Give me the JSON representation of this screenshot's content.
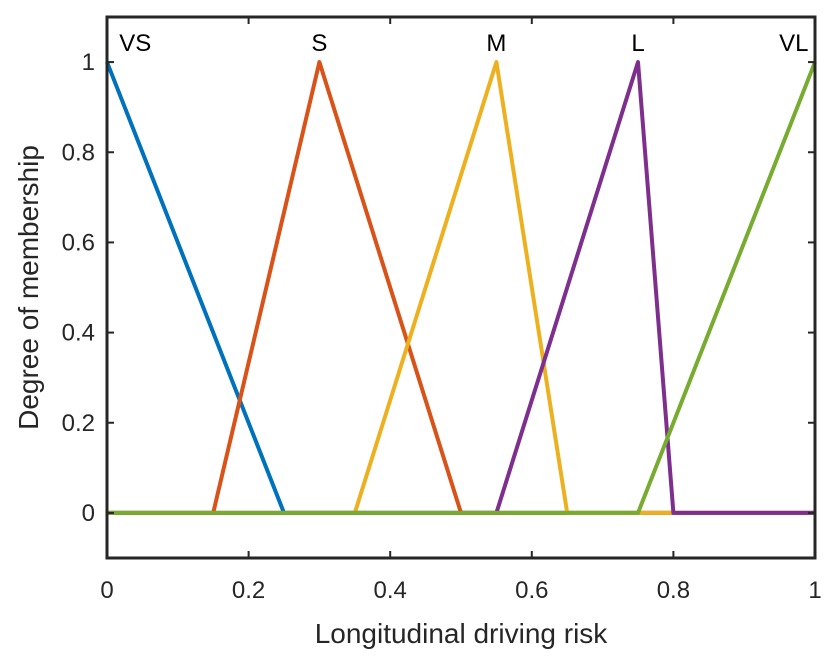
{
  "chart_data": {
    "type": "line",
    "title": "",
    "xlabel": "Longitudinal driving risk",
    "ylabel": "Degree of membership",
    "xlim": [
      0,
      1
    ],
    "ylim": [
      -0.1,
      1.1
    ],
    "xticks": [
      0,
      0.2,
      0.4,
      0.6,
      0.8,
      1
    ],
    "xtick_labels": [
      "0",
      "0.2",
      "0.4",
      "0.6",
      "0.8",
      "1"
    ],
    "yticks": [
      0,
      0.2,
      0.4,
      0.6,
      0.8,
      1
    ],
    "ytick_labels": [
      "0",
      "0.2",
      "0.4",
      "0.6",
      "0.8",
      "1"
    ],
    "grid": false,
    "series": [
      {
        "name": "VS",
        "color": "#0072BD",
        "x": [
          0,
          0.25,
          1
        ],
        "y": [
          1,
          0,
          0
        ],
        "label_x": 0.04
      },
      {
        "name": "S",
        "color": "#D95319",
        "x": [
          0,
          0.15,
          0.3,
          0.5,
          1
        ],
        "y": [
          0,
          0,
          1,
          0,
          0
        ],
        "label_x": 0.3
      },
      {
        "name": "M",
        "color": "#EDB120",
        "x": [
          0,
          0.35,
          0.55,
          0.65,
          1
        ],
        "y": [
          0,
          0,
          1,
          0,
          0
        ],
        "label_x": 0.55
      },
      {
        "name": "L",
        "color": "#7E2F8E",
        "x": [
          0,
          0.55,
          0.75,
          0.8,
          1
        ],
        "y": [
          0,
          0,
          1,
          0,
          0
        ],
        "label_x": 0.75
      },
      {
        "name": "VL",
        "color": "#77AC30",
        "x": [
          0,
          0.75,
          1
        ],
        "y": [
          0,
          0,
          1
        ],
        "label_x": 0.97
      }
    ]
  }
}
